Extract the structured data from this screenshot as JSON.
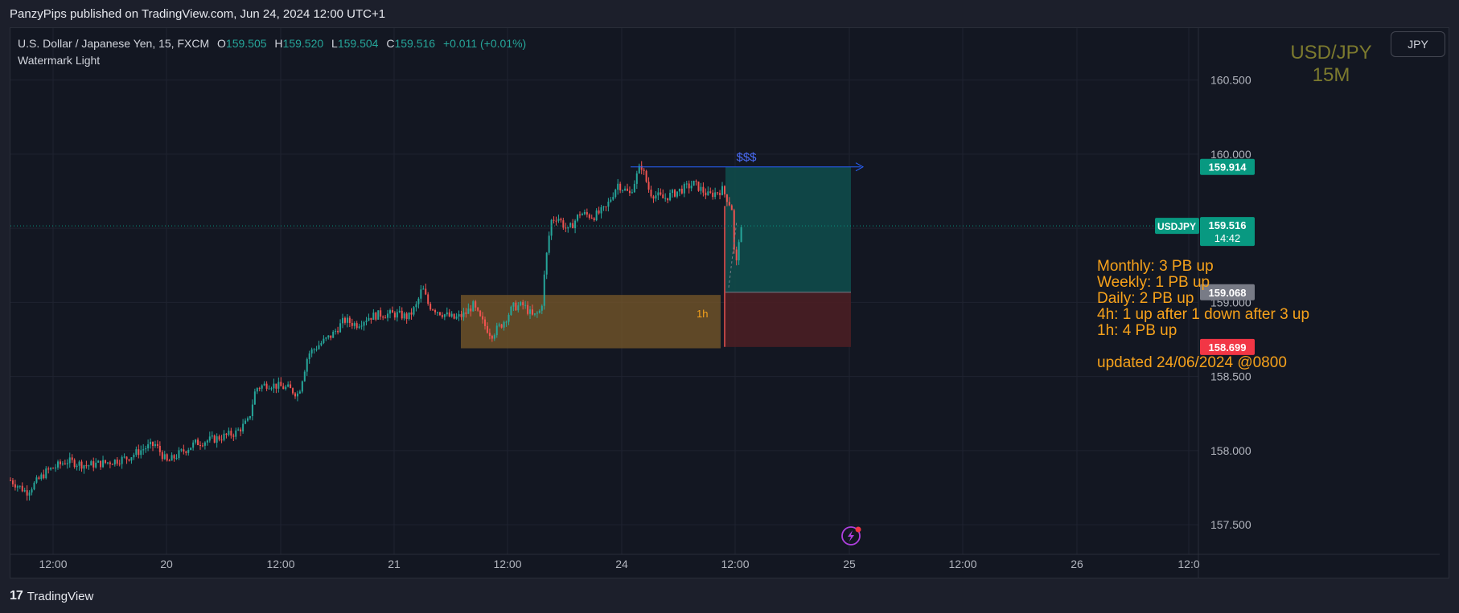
{
  "header": {
    "published": "PanzyPips published on TradingView.com, Jun 24, 2024 12:00 UTC+1"
  },
  "legend": {
    "symbol": "U.S. Dollar / Japanese Yen, 15, FXCM",
    "o_label": "O",
    "o": "159.505",
    "h_label": "H",
    "h": "159.520",
    "l_label": "L",
    "l": "159.504",
    "c_label": "C",
    "c": "159.516",
    "change": "+0.011 (+0.01%)",
    "indicator": "Watermark Light"
  },
  "currency_button": "JPY",
  "watermark": {
    "line1": "USD/JPY",
    "line2": "15M"
  },
  "notes": {
    "monthly": "Monthly: 3 PB up",
    "weekly": "Weekly: 1 PB up",
    "daily": "Daily: 2 PB up",
    "h4": "4h: 1 up after 1 down after 3 up",
    "h1": "1h: 4 PB up",
    "updated": "updated 24/06/2024 @0800"
  },
  "footer": {
    "brand": "TradingView",
    "logo": "tradingview-logo-icon"
  },
  "colors": {
    "up": "#26a69a",
    "down": "#ef5350",
    "background": "#131722",
    "zone": "#7a5a2a",
    "target_zone": "#0f4a4a",
    "stop_zone": "#4a1e24",
    "annotation": "#f7a21b",
    "line_blue": "#2962ff"
  },
  "chart_data": {
    "type": "candlestick",
    "symbol": "USDJPY",
    "interval": "15",
    "y_ticks": [
      157.5,
      158.0,
      158.5,
      159.0,
      159.5,
      160.0,
      160.5
    ],
    "y_tick_labels": [
      "157.500",
      "158.000",
      "158.500",
      "159.000",
      "159.500",
      "160.000",
      "160.500"
    ],
    "ylim": [
      157.3,
      160.85
    ],
    "x_tick_labels": [
      "12:00",
      "20",
      "12:00",
      "21",
      "12:00",
      "24",
      "12:00",
      "25",
      "12:00",
      "26",
      "12:0"
    ],
    "close_path": [
      [
        0,
        157.8
      ],
      [
        20,
        157.72
      ],
      [
        45,
        157.86
      ],
      [
        70,
        157.93
      ],
      [
        95,
        157.9
      ],
      [
        120,
        157.92
      ],
      [
        145,
        157.95
      ],
      [
        168,
        158.02
      ],
      [
        180,
        158.04
      ],
      [
        195,
        157.92
      ],
      [
        210,
        157.98
      ],
      [
        230,
        158.05
      ],
      [
        255,
        158.08
      ],
      [
        280,
        158.12
      ],
      [
        296,
        158.2
      ],
      [
        305,
        158.42
      ],
      [
        320,
        158.45
      ],
      [
        345,
        158.42
      ],
      [
        358,
        158.38
      ],
      [
        370,
        158.65
      ],
      [
        385,
        158.72
      ],
      [
        400,
        158.78
      ],
      [
        415,
        158.88
      ],
      [
        430,
        158.85
      ],
      [
        445,
        158.9
      ],
      [
        460,
        158.92
      ],
      [
        480,
        158.92
      ],
      [
        495,
        158.9
      ],
      [
        505,
        158.98
      ],
      [
        512,
        159.1
      ],
      [
        520,
        158.98
      ],
      [
        535,
        158.93
      ],
      [
        552,
        158.89
      ],
      [
        565,
        158.92
      ],
      [
        575,
        158.98
      ],
      [
        585,
        158.88
      ],
      [
        598,
        158.78
      ],
      [
        612,
        158.86
      ],
      [
        625,
        158.97
      ],
      [
        638,
        158.98
      ],
      [
        650,
        158.9
      ],
      [
        660,
        158.95
      ],
      [
        665,
        159.25
      ],
      [
        672,
        159.55
      ],
      [
        680,
        159.58
      ],
      [
        693,
        159.48
      ],
      [
        708,
        159.6
      ],
      [
        725,
        159.58
      ],
      [
        740,
        159.63
      ],
      [
        755,
        159.8
      ],
      [
        770,
        159.73
      ],
      [
        784,
        159.93
      ],
      [
        795,
        159.74
      ],
      [
        812,
        159.7
      ],
      [
        830,
        159.75
      ],
      [
        850,
        159.8
      ],
      [
        868,
        159.72
      ],
      [
        885,
        159.76
      ],
      [
        893,
        159.68
      ],
      [
        898,
        159.62
      ],
      [
        901,
        159.15
      ],
      [
        905,
        159.42
      ],
      [
        911,
        159.516
      ]
    ],
    "zone_1h": {
      "label": "1h",
      "x_range": [
        573,
        896
      ],
      "price_range": [
        158.69,
        159.05
      ]
    },
    "position": {
      "entry": 159.068,
      "target": 159.914,
      "stop": 158.699,
      "x_range": [
        902,
        1058
      ]
    },
    "liquidity_line": {
      "label": "$$$",
      "price": 159.914
    },
    "price_labels": [
      {
        "price": 159.914,
        "text": "159.914",
        "color": "#089981"
      },
      {
        "price": 159.516,
        "text": "159.516",
        "sub": "14:42",
        "tag": "USDJPY",
        "color": "#089981"
      },
      {
        "price": 159.068,
        "text": "159.068",
        "color": "#787b86"
      },
      {
        "price": 158.699,
        "text": "158.699",
        "color": "#f23645"
      }
    ],
    "current_price": 159.516,
    "grid": true
  }
}
